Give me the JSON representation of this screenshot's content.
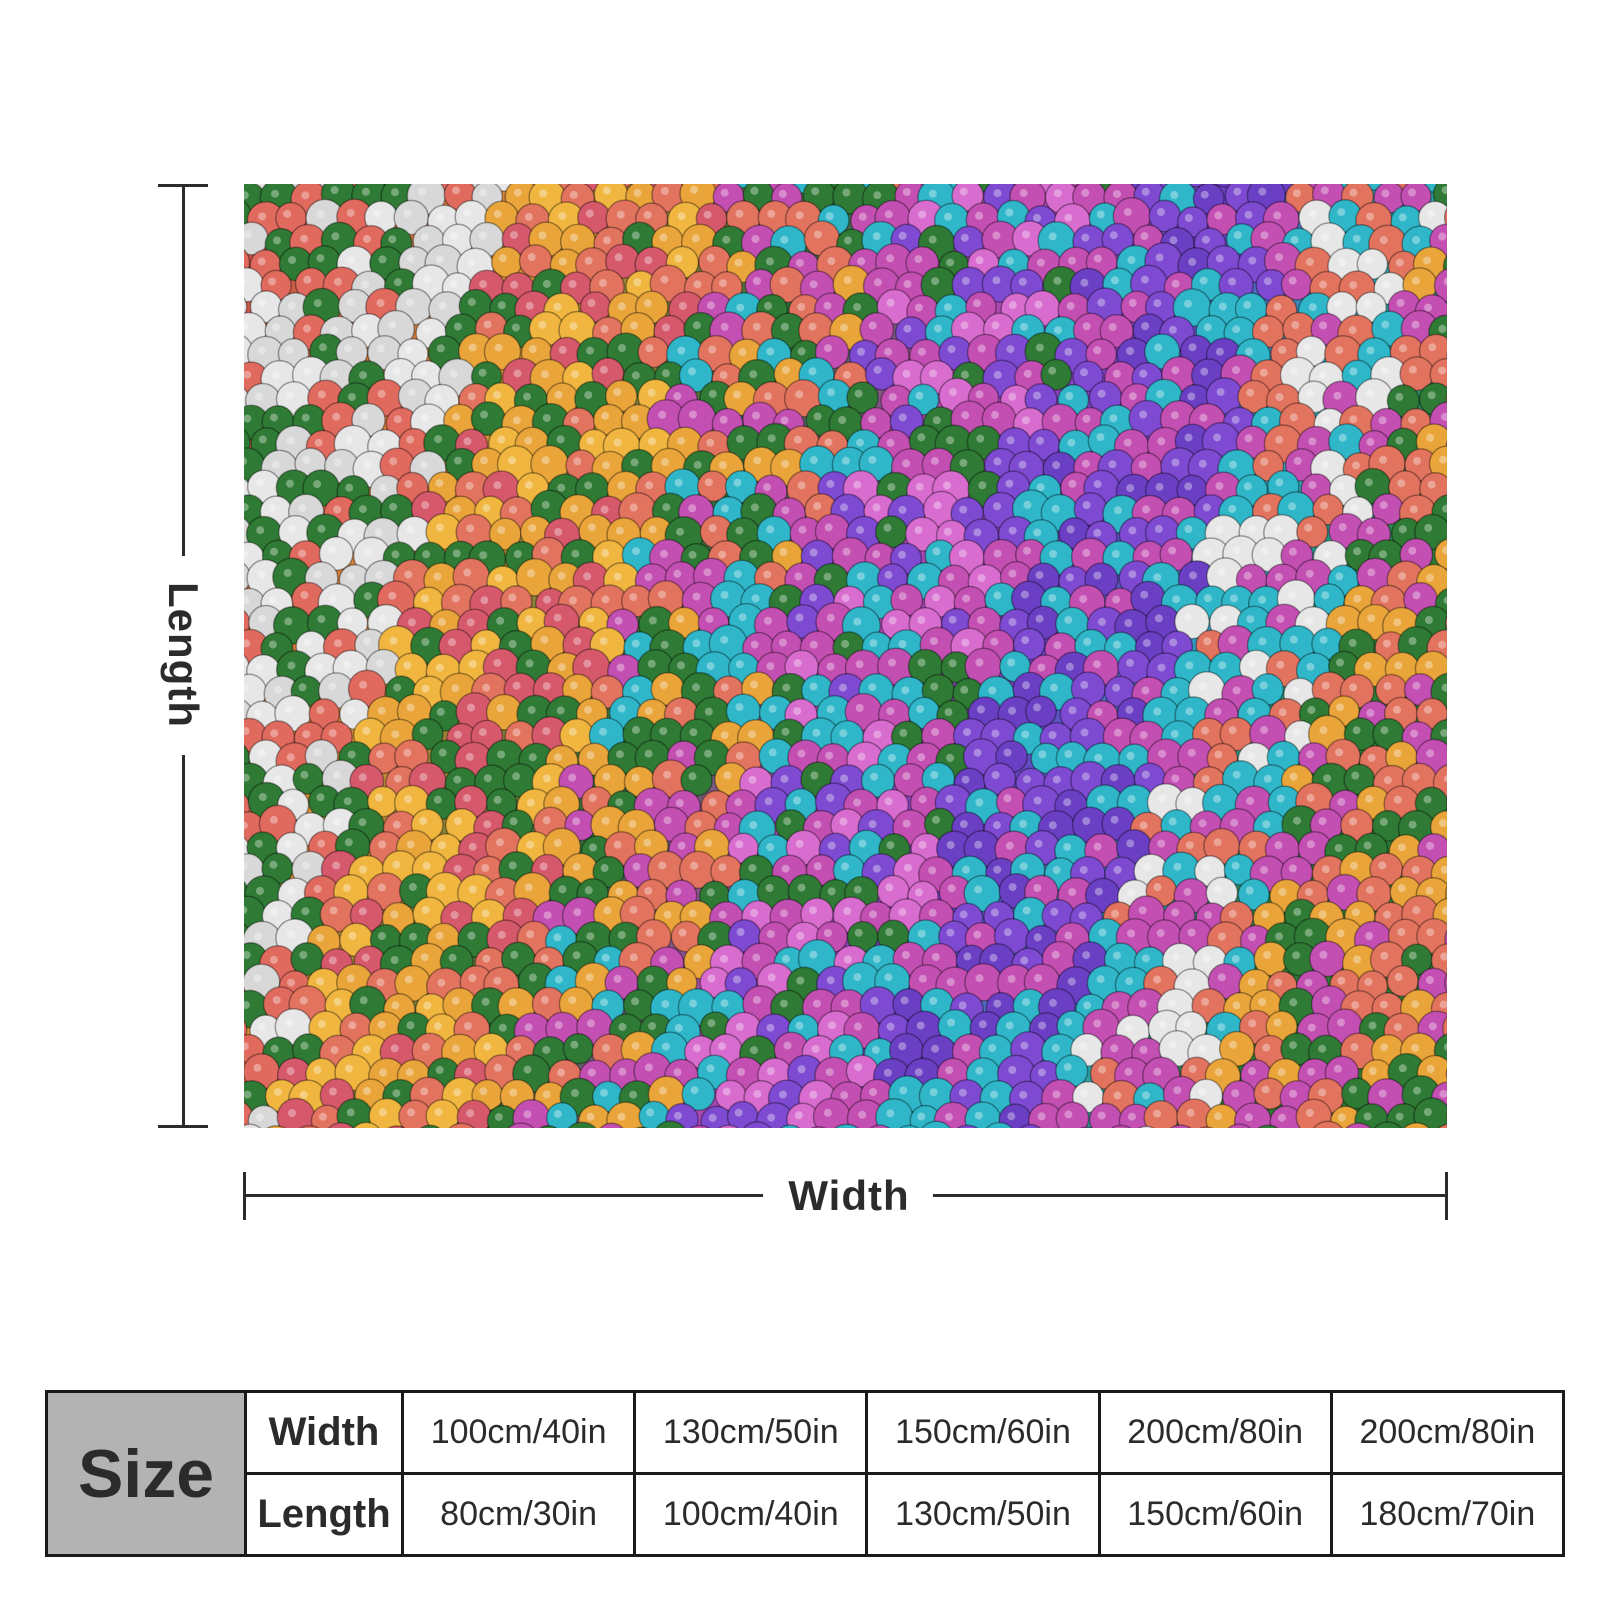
{
  "diagram": {
    "length_label": "Length",
    "width_label": "Width"
  },
  "product_image": {
    "description_icon": "sequin-fabric-image",
    "colors": [
      "#e9a43a",
      "#e2735e",
      "#2f7a34",
      "#c44fb2",
      "#7d4ad1",
      "#2fb7c9",
      "#e7e7e7"
    ]
  },
  "size_table": {
    "title": "Size",
    "width_label": "Width",
    "length_label": "Length",
    "widths": [
      "100cm/40in",
      "130cm/50in",
      "150cm/60in",
      "200cm/80in",
      "200cm/80in"
    ],
    "lengths": [
      "80cm/30in",
      "100cm/40in",
      "130cm/50in",
      "150cm/60in",
      "180cm/70in"
    ]
  }
}
